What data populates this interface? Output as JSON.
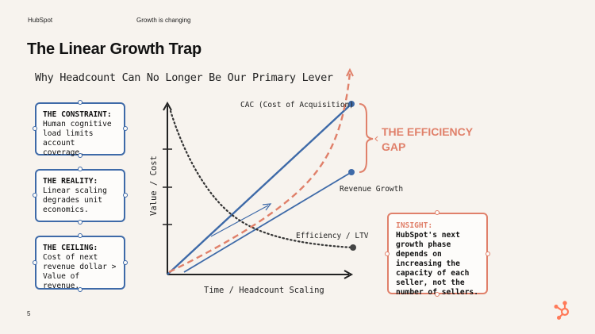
{
  "header": {
    "brand": "HubSpot",
    "section": "Growth is changing"
  },
  "title": "The Linear Growth Trap",
  "subtitle": "Why Headcount Can No Longer Be Our Primary Lever",
  "cards": [
    {
      "heading": "THE CONSTRAINT:",
      "body": "Human cognitive load limits account coverage."
    },
    {
      "heading": "THE REALITY:",
      "body": "Linear scaling degrades unit economics."
    },
    {
      "heading": "THE CEILING:",
      "body": "Cost of next revenue dollar > Value of revenue."
    }
  ],
  "chart": {
    "xlabel": "Time / Headcount Scaling",
    "ylabel": "Value / Cost",
    "series": {
      "cac": "CAC (Cost of Acquisition)",
      "revenue": "Revenue Growth",
      "efficiency": "Efficiency / LTV"
    },
    "gap_label_line1": "THE EFFICIENCY",
    "gap_label_line2": "GAP"
  },
  "insight": {
    "heading": "INSIGHT:",
    "body": "HubSpot's next growth phase depends on increasing the capacity of each seller, not the number of sellers."
  },
  "page_number": "5",
  "colors": {
    "blue": "#3e6aa8",
    "coral": "#e0806a",
    "ink": "#222222",
    "background": "#f7f3ee",
    "logo": "#ff7a59"
  },
  "icons": {
    "logo": "hubspot-sprocket-icon"
  }
}
